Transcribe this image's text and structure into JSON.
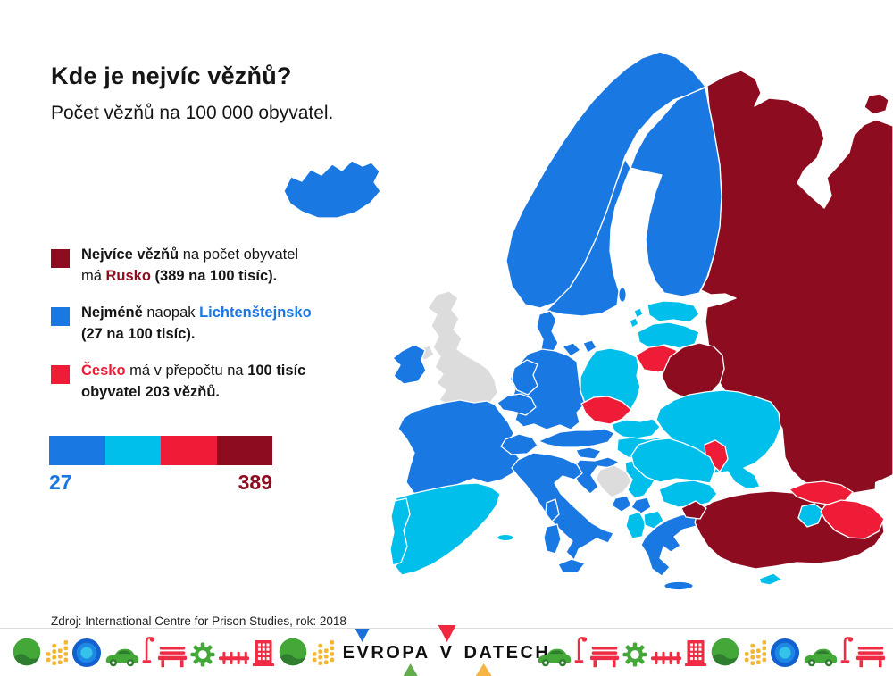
{
  "palette": {
    "blue": "#1a78e2",
    "cyan": "#00bfea",
    "red": "#ef1c38",
    "dark_red": "#8e0c20",
    "gray": "#dcdcdc",
    "text": "#151515",
    "icon_green": "#43a837",
    "icon_dark_green": "#2f7d2f",
    "icon_yellow": "#f4b731",
    "icon_red": "#ee2d44",
    "pond_outer": "#1361cf",
    "pond_mid": "#1e88e5",
    "pond_inner": "#35c3ea",
    "logo_blue": "#1a6fd9",
    "logo_red": "#f02840",
    "logo_green": "#63ad4e",
    "logo_orange": "#f6b545"
  },
  "header": {
    "title": "Kde je nejvíc vězňů?",
    "subtitle": "Počet vězňů na 100 000 obyvatel."
  },
  "legend": {
    "items": [
      {
        "color": "dark_red",
        "segments": [
          {
            "t": "Nejvíce vězňů",
            "b": true
          },
          {
            "t": " na počet obyvatel"
          },
          {
            "br": true
          },
          {
            "t": "má "
          },
          {
            "t": "Rusko",
            "b": true,
            "c": "dark_red"
          },
          {
            "t": " (389 na 100 tisíc).",
            "b": true
          }
        ]
      },
      {
        "color": "blue",
        "segments": [
          {
            "t": "Nejméně",
            "b": true
          },
          {
            "t": " naopak "
          },
          {
            "t": "Lichtenštejnsko",
            "b": true,
            "c": "blue"
          },
          {
            "br": true
          },
          {
            "t": "(27 na 100 tisíc).",
            "b": true
          }
        ]
      },
      {
        "color": "red",
        "segments": [
          {
            "t": "Česko",
            "b": true,
            "c": "red"
          },
          {
            "t": " má v přepočtu na "
          },
          {
            "t": "100 tisíc",
            "b": true
          },
          {
            "br": true
          },
          {
            "t": "obyvatel 203 vězňů.",
            "b": true
          }
        ]
      }
    ]
  },
  "scale": {
    "min_label": "27",
    "max_label": "389",
    "segments": [
      "blue",
      "cyan",
      "red",
      "dark_red"
    ]
  },
  "map": {
    "unit": "vězňů na 100 000 obyvatel",
    "highlight_values": {
      "Rusko": 389,
      "Lichtenštejnsko": 27,
      "Česko": 203
    },
    "year": "2018",
    "category_colors": {
      "highest": "dark_red",
      "high": "red",
      "low": "cyan",
      "lowest": "blue",
      "no_data": "gray"
    },
    "countries": {
      "russia": "highest",
      "russia_island": "highest",
      "belarus": "highest",
      "kaliningrad": "highest",
      "turkey": "highest",
      "turkey_west": "highest",
      "czechia": "high",
      "lithuania": "high",
      "moldova": "high",
      "georgia": "high",
      "azerbaijan": "high",
      "estonia": "low",
      "estonia_islands": "low",
      "latvia": "low",
      "poland": "low",
      "slovakia": "low",
      "hungary": "low",
      "romania": "low",
      "bulgaria": "low",
      "serbia": "low",
      "albania": "low",
      "macedonia": "low",
      "ukraine": "low",
      "spain": "low",
      "portugal": "low",
      "balearic": "low",
      "armenia": "low",
      "cyprus": "low",
      "iceland": "lowest",
      "norway": "lowest",
      "sweden": "lowest",
      "finland": "lowest",
      "denmark": "lowest",
      "gotland": "lowest",
      "ireland": "lowest",
      "netherlands": "lowest",
      "belgium": "lowest",
      "germany": "lowest",
      "france": "lowest",
      "switzerland": "lowest",
      "austria": "lowest",
      "italy": "lowest",
      "sicily": "lowest",
      "sardinia": "lowest",
      "corsica": "lowest",
      "slovenia": "lowest",
      "croatia": "lowest",
      "montenegro": "lowest",
      "kosovo": "lowest",
      "greece": "lowest",
      "crete": "lowest",
      "uk": "no_data",
      "northern_ireland": "no_data",
      "bosnia": "no_data"
    }
  },
  "footer": {
    "source": "Zdroj: International Centre for Prison Studies, rok: 2018",
    "logo": {
      "word1": "EVROPA",
      "word2": "V",
      "word3": "DATECH"
    },
    "icons_left": [
      "park",
      "wheat",
      "pond",
      "car",
      "streetlamp",
      "bench",
      "gear",
      "railway",
      "building",
      "park",
      "wheat"
    ],
    "icons_right": [
      "car",
      "streetlamp",
      "bench",
      "gear",
      "railway",
      "building",
      "park",
      "wheat",
      "pond",
      "car",
      "streetlamp",
      "bench"
    ]
  }
}
